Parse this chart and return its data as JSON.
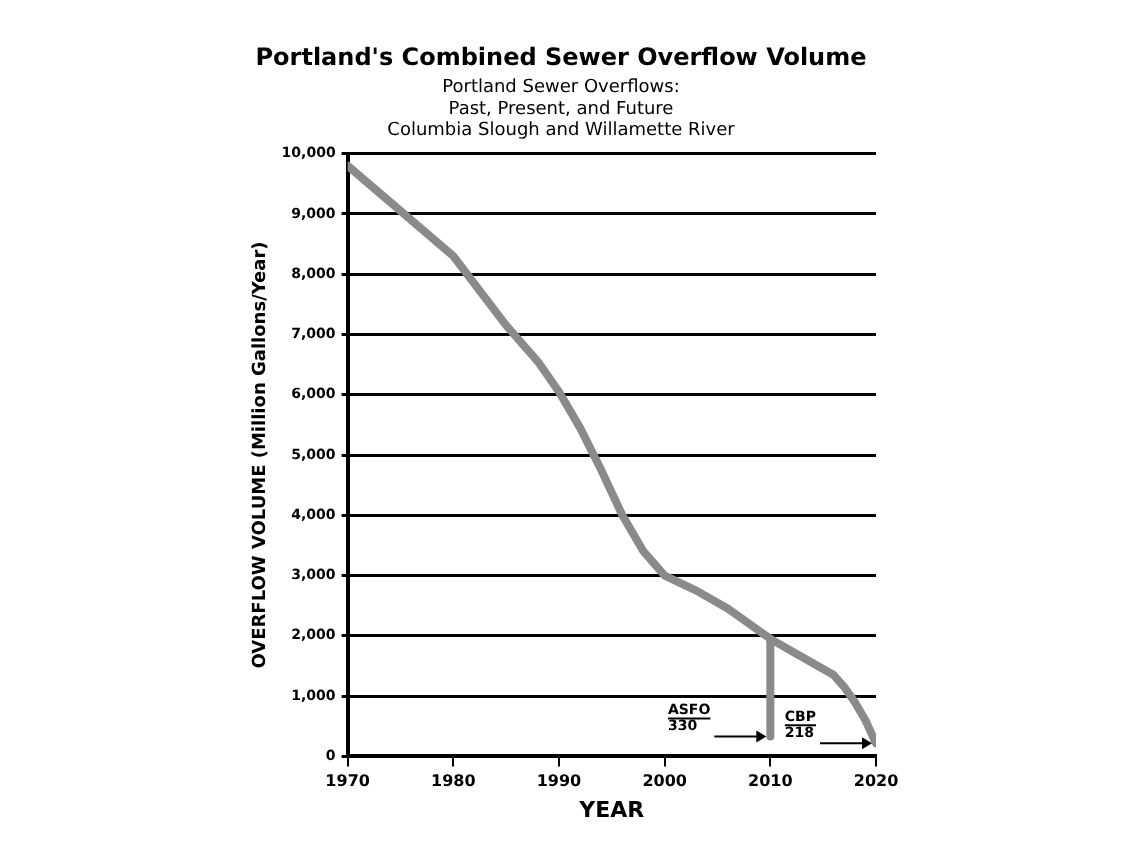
{
  "chart_data": {
    "type": "line",
    "title": "Portland's Combined Sewer Overflow Volume",
    "subtitle": "Portland Sewer Overflows:\nPast, Present, and Future\nColumbia Slough and Willamette River",
    "xlabel": "YEAR",
    "ylabel": "OVERFLOW VOLUME (Million Gallons/Year)",
    "series": [
      {
        "color": "#8a8a8a",
        "x": [
          1970,
          1975,
          1980,
          1985,
          1988,
          1990,
          1992,
          1994,
          1996,
          1998,
          2000,
          2003,
          2006,
          2008,
          2010,
          2012,
          2014,
          2016,
          2017,
          2018,
          2019,
          2020
        ],
        "values": [
          9800,
          9050,
          8300,
          7150,
          6550,
          6050,
          5450,
          4750,
          4000,
          3400,
          3000,
          2750,
          2450,
          2200,
          1950,
          1750,
          1550,
          1350,
          1150,
          900,
          600,
          218
        ]
      },
      {
        "color": "#8a8a8a",
        "x": [
          2010,
          2010
        ],
        "values": [
          1950,
          330
        ]
      }
    ],
    "xlim": [
      1970,
      2020
    ],
    "xticks": [
      1970,
      1980,
      1990,
      2000,
      2010,
      2020
    ],
    "ylim": [
      0,
      10000
    ],
    "yticks": [
      0,
      {
        "value": 1000,
        "label": "1,000"
      },
      {
        "value": 2000,
        "label": "2,000"
      },
      {
        "value": 3000,
        "label": "3,000"
      },
      {
        "value": 4000,
        "label": "4,000"
      },
      {
        "value": 5000,
        "label": "5,000"
      },
      {
        "value": 6000,
        "label": "6,000"
      },
      {
        "value": 7000,
        "label": "7,000"
      },
      {
        "value": 8000,
        "label": "8,000"
      },
      {
        "value": 9000,
        "label": "9,000"
      },
      {
        "value": 10000,
        "label": "10,000"
      }
    ],
    "grid": "y",
    "marker": "none",
    "line_style": "solid",
    "legend": false,
    "annotations": [
      {
        "text": "ASFO\n330",
        "x": 2010,
        "y": 330
      },
      {
        "text": "CBP\n218",
        "x": 2020,
        "y": 218
      }
    ]
  }
}
